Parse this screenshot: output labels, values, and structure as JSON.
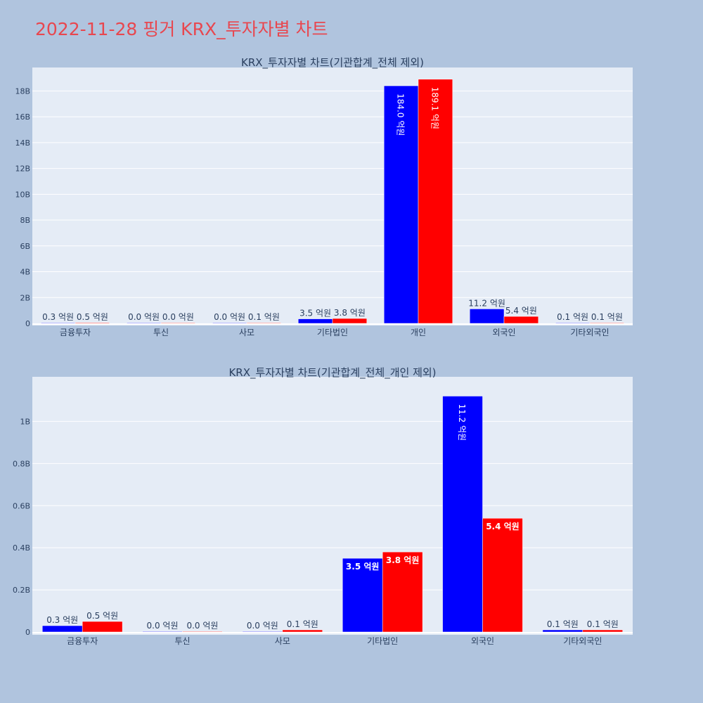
{
  "page": {
    "title": "2022-11-28 핑거 KRX_투자자별 차트"
  },
  "colors": {
    "series_a": "#0000ff",
    "series_b": "#ff0000",
    "plot_bg": "#e5ecf6",
    "page_bg": "#b0c4de",
    "title": "#e8474f"
  },
  "chart_data": [
    {
      "type": "bar",
      "title": "KRX_투자자별 차트(기관합계_전체 제외)",
      "categories": [
        "금융투자",
        "투신",
        "사모",
        "기타법인",
        "개인",
        "외국인",
        "기타외국인"
      ],
      "series": [
        {
          "values": [
            0.03,
            0.0,
            0.0,
            0.35,
            18.4,
            1.12,
            0.01
          ],
          "labels": [
            "0.3 억원",
            "0.0 억원",
            "0.0 억원",
            "3.5 억원",
            "184.0 억원",
            "11.2 억원",
            "0.1 억원"
          ]
        },
        {
          "values": [
            0.05,
            0.0,
            0.01,
            0.38,
            18.91,
            0.54,
            0.01
          ],
          "labels": [
            "0.5 억원",
            "0.0 억원",
            "0.1 억원",
            "3.8 억원",
            "189.1 억원",
            "5.4 억원",
            "0.1 억원"
          ]
        }
      ],
      "ylim": [
        0,
        19.6
      ],
      "yticks": [
        0,
        2,
        4,
        6,
        8,
        10,
        12,
        14,
        16,
        18
      ],
      "ytick_labels": [
        "0",
        "2B",
        "4B",
        "6B",
        "8B",
        "10B",
        "12B",
        "14B",
        "16B",
        "18B"
      ],
      "grid": true
    },
    {
      "type": "bar",
      "title": "KRX_투자자별 차트(기관합계_전체_개인 제외)",
      "categories": [
        "금융투자",
        "투신",
        "사모",
        "기타법인",
        "외국인",
        "기타외국인"
      ],
      "series": [
        {
          "values": [
            0.03,
            0.0,
            0.0,
            0.35,
            1.12,
            0.01
          ],
          "labels": [
            "0.3 억원",
            "0.0 억원",
            "0.0 억원",
            "3.5 억원",
            "11.2 억원",
            "0.1 억원"
          ]
        },
        {
          "values": [
            0.05,
            0.0,
            0.01,
            0.38,
            0.54,
            0.01
          ],
          "labels": [
            "0.5 억원",
            "0.0 억원",
            "0.1 억원",
            "3.8 억원",
            "5.4 억원",
            "0.1 억원"
          ]
        }
      ],
      "ylim": [
        0,
        1.195
      ],
      "yticks": [
        0,
        0.2,
        0.4,
        0.6,
        0.8,
        1.0
      ],
      "ytick_labels": [
        "0",
        "0.2B",
        "0.4B",
        "0.6B",
        "0.8B",
        "1B"
      ],
      "grid": true
    }
  ]
}
